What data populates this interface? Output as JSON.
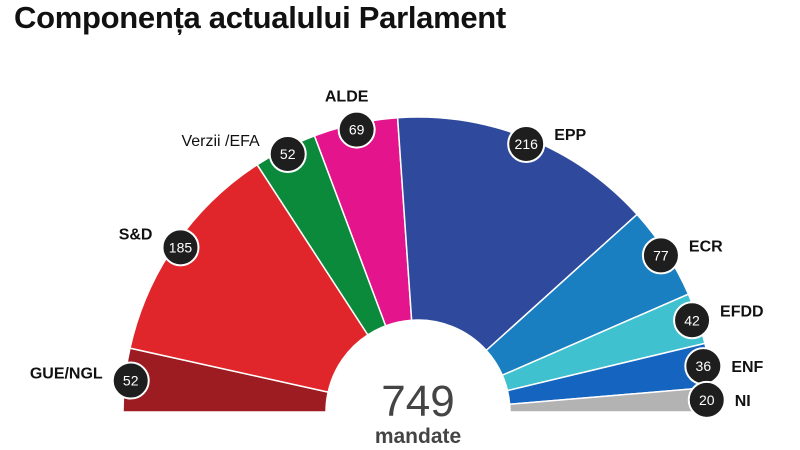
{
  "chart_data": {
    "type": "pie",
    "variant": "half-donut",
    "title": "Componența actualului Parlament",
    "total": {
      "value": "749",
      "label": "mandate"
    },
    "slices": [
      {
        "name": "GUE/NGL",
        "value": 52,
        "label": "52",
        "color": "#9c1c22"
      },
      {
        "name": "S&D",
        "value": 185,
        "label": "185",
        "color": "#e0262a"
      },
      {
        "name": "Verzii /EFA",
        "value": 52,
        "label": "52",
        "color": "#0b8a3c"
      },
      {
        "name": "ALDE",
        "value": 69,
        "label": "69",
        "color": "#e4148c"
      },
      {
        "name": "EPP",
        "value": 216,
        "label": "216",
        "color": "#2f4a9c"
      },
      {
        "name": "ECR",
        "value": 77,
        "label": "77",
        "color": "#1a7fc0"
      },
      {
        "name": "EFDD",
        "value": 42,
        "label": "42",
        "color": "#3fc1cf"
      },
      {
        "name": "ENF",
        "value": 36,
        "label": "36",
        "color": "#1565c0"
      },
      {
        "name": "NI",
        "value": 20,
        "label": "20",
        "color": "#b3b3b3"
      }
    ],
    "legend": "none"
  }
}
